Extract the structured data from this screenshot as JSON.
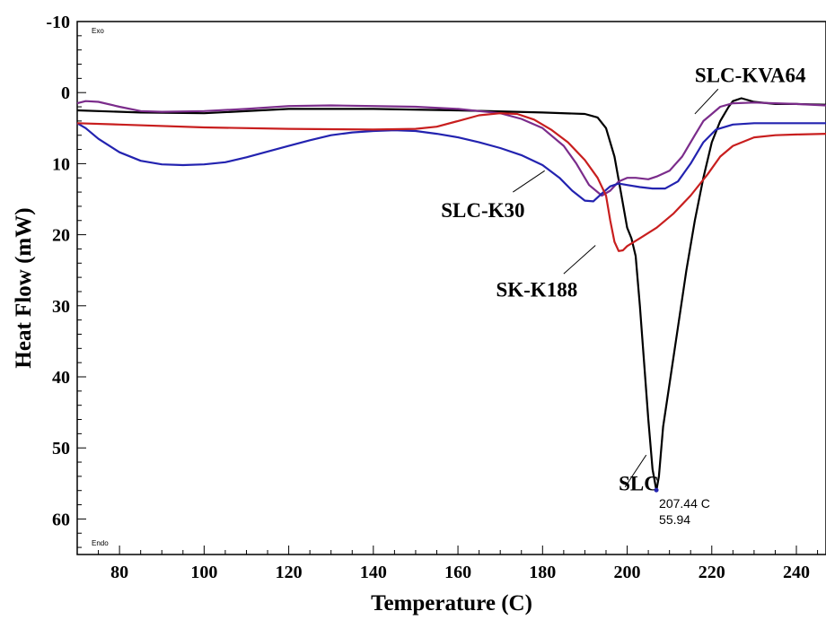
{
  "chart_data": {
    "type": "line",
    "xlabel": "Temperature (C)",
    "ylabel": "Heat Flow (mW)",
    "xlim": [
      70,
      247
    ],
    "ylim": [
      -10,
      65
    ],
    "y_inverted": true,
    "x_ticks": [
      80,
      100,
      120,
      140,
      160,
      180,
      200,
      220,
      240
    ],
    "y_ticks": [
      -10,
      0,
      10,
      20,
      30,
      40,
      50,
      60
    ],
    "corner_labels": {
      "top": "Exo",
      "bottom": "Endo"
    },
    "peak_annotation": {
      "x": 206.9,
      "y": 55.94,
      "temp_text": "207.44 C",
      "value_text": "55.94"
    },
    "series": [
      {
        "name": "SLC",
        "color": "#000000",
        "label_pos": {
          "x": 198,
          "y": 56
        },
        "pointer": [
          [
            199.5,
            55.5
          ],
          [
            204.5,
            51
          ]
        ],
        "points": [
          [
            70,
            2.5
          ],
          [
            85,
            2.8
          ],
          [
            100,
            2.9
          ],
          [
            120,
            2.3
          ],
          [
            140,
            2.3
          ],
          [
            160,
            2.5
          ],
          [
            180,
            2.8
          ],
          [
            190,
            3.0
          ],
          [
            193,
            3.5
          ],
          [
            195,
            5
          ],
          [
            197,
            9
          ],
          [
            198.5,
            14
          ],
          [
            200,
            19
          ],
          [
            201,
            20.5
          ],
          [
            202,
            23
          ],
          [
            203,
            30
          ],
          [
            204,
            38
          ],
          [
            205,
            46
          ],
          [
            206,
            53
          ],
          [
            206.9,
            56
          ],
          [
            207.5,
            54
          ],
          [
            208.5,
            47
          ],
          [
            210,
            41
          ],
          [
            212,
            33
          ],
          [
            214,
            25
          ],
          [
            216,
            18
          ],
          [
            218,
            12
          ],
          [
            220,
            7
          ],
          [
            222,
            4
          ],
          [
            224,
            2
          ],
          [
            225,
            1.2
          ],
          [
            227,
            0.8
          ],
          [
            230,
            1.3
          ],
          [
            235,
            1.6
          ],
          [
            240,
            1.6
          ],
          [
            247,
            1.7
          ]
        ]
      },
      {
        "name": "SLC-KVA64",
        "color": "#7b2c8b",
        "label_pos": {
          "x": 216,
          "y": -1.5
        },
        "pointer": [
          [
            221.5,
            -0.5
          ],
          [
            216,
            3
          ]
        ],
        "points": [
          [
            70,
            1.5
          ],
          [
            72,
            1.2
          ],
          [
            75,
            1.3
          ],
          [
            80,
            2
          ],
          [
            85,
            2.6
          ],
          [
            90,
            2.7
          ],
          [
            100,
            2.6
          ],
          [
            110,
            2.3
          ],
          [
            120,
            1.9
          ],
          [
            130,
            1.8
          ],
          [
            140,
            1.9
          ],
          [
            150,
            2.0
          ],
          [
            160,
            2.3
          ],
          [
            165,
            2.6
          ],
          [
            170,
            2.9
          ],
          [
            175,
            3.7
          ],
          [
            180,
            5
          ],
          [
            185,
            7.5
          ],
          [
            188,
            10
          ],
          [
            191,
            13
          ],
          [
            194,
            14.5
          ],
          [
            196,
            13.8
          ],
          [
            198,
            12.5
          ],
          [
            200,
            12
          ],
          [
            202,
            12
          ],
          [
            205,
            12.2
          ],
          [
            207,
            11.8
          ],
          [
            210,
            11
          ],
          [
            213,
            9
          ],
          [
            216,
            6
          ],
          [
            218,
            4
          ],
          [
            220,
            3
          ],
          [
            222,
            2
          ],
          [
            225,
            1.5
          ],
          [
            230,
            1.4
          ],
          [
            235,
            1.5
          ],
          [
            240,
            1.6
          ],
          [
            247,
            1.8
          ]
        ]
      },
      {
        "name": "SLC-K30",
        "color": "#2323b0",
        "label_pos": {
          "x": 156,
          "y": 17.5
        },
        "pointer": [
          [
            173,
            14
          ],
          [
            180.5,
            11
          ]
        ],
        "points": [
          [
            70,
            4.3
          ],
          [
            72,
            5
          ],
          [
            75,
            6.5
          ],
          [
            80,
            8.4
          ],
          [
            85,
            9.6
          ],
          [
            90,
            10.1
          ],
          [
            95,
            10.2
          ],
          [
            100,
            10.1
          ],
          [
            105,
            9.8
          ],
          [
            110,
            9.1
          ],
          [
            115,
            8.3
          ],
          [
            120,
            7.5
          ],
          [
            125,
            6.7
          ],
          [
            130,
            6.0
          ],
          [
            135,
            5.6
          ],
          [
            140,
            5.4
          ],
          [
            145,
            5.3
          ],
          [
            150,
            5.4
          ],
          [
            155,
            5.8
          ],
          [
            160,
            6.3
          ],
          [
            165,
            7.0
          ],
          [
            170,
            7.8
          ],
          [
            175,
            8.8
          ],
          [
            180,
            10.2
          ],
          [
            184,
            12
          ],
          [
            187,
            13.8
          ],
          [
            190,
            15.2
          ],
          [
            192,
            15.3
          ],
          [
            194,
            14.2
          ],
          [
            196,
            13.2
          ],
          [
            198,
            12.8
          ],
          [
            200,
            13
          ],
          [
            203,
            13.3
          ],
          [
            206,
            13.5
          ],
          [
            209,
            13.5
          ],
          [
            212,
            12.5
          ],
          [
            215,
            10
          ],
          [
            218,
            7
          ],
          [
            221,
            5.2
          ],
          [
            225,
            4.5
          ],
          [
            230,
            4.3
          ],
          [
            240,
            4.3
          ],
          [
            247,
            4.3
          ]
        ]
      },
      {
        "name": "SK-K188",
        "color": "#c81e1e",
        "label_pos": {
          "x": 169,
          "y": 28.7
        },
        "pointer": [
          [
            185,
            25.5
          ],
          [
            192.5,
            21.5
          ]
        ],
        "points": [
          [
            70,
            4.3
          ],
          [
            80,
            4.5
          ],
          [
            100,
            4.9
          ],
          [
            120,
            5.1
          ],
          [
            140,
            5.2
          ],
          [
            150,
            5.1
          ],
          [
            155,
            4.8
          ],
          [
            160,
            4.0
          ],
          [
            165,
            3.2
          ],
          [
            170,
            2.9
          ],
          [
            174,
            3.0
          ],
          [
            178,
            3.8
          ],
          [
            182,
            5.2
          ],
          [
            186,
            7
          ],
          [
            190,
            9.5
          ],
          [
            193,
            12
          ],
          [
            195,
            14.5
          ],
          [
            196,
            18
          ],
          [
            197,
            21
          ],
          [
            198,
            22.3
          ],
          [
            199,
            22.2
          ],
          [
            200,
            21.6
          ],
          [
            203,
            20.5
          ],
          [
            207,
            19
          ],
          [
            211,
            17
          ],
          [
            215,
            14.5
          ],
          [
            219,
            11.5
          ],
          [
            222,
            9
          ],
          [
            225,
            7.5
          ],
          [
            230,
            6.3
          ],
          [
            235,
            6.0
          ],
          [
            240,
            5.9
          ],
          [
            247,
            5.8
          ]
        ]
      }
    ]
  }
}
